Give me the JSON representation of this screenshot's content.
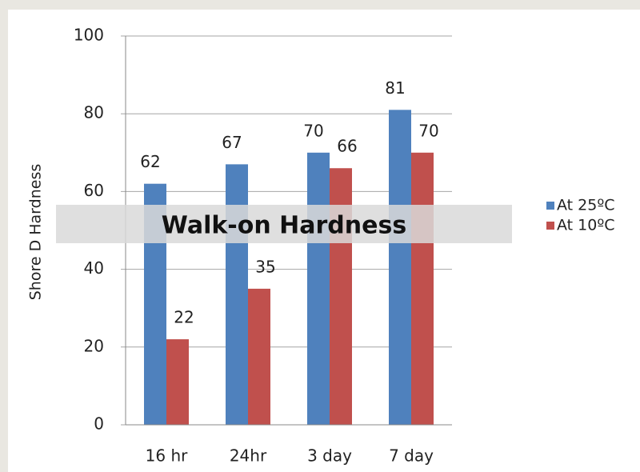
{
  "chart_data": {
    "type": "bar",
    "y_label": "Shore D Hardness",
    "annotation": "Walk-on Hardness",
    "categories": [
      "16 hr",
      "24hr",
      "3 day",
      "7 day"
    ],
    "series": [
      {
        "name": "At 25ºC",
        "color": "#4f81bd",
        "values": [
          62,
          67,
          70,
          81
        ]
      },
      {
        "name": "At 10ºC",
        "color": "#c0504d",
        "values": [
          22,
          35,
          66,
          70
        ]
      }
    ],
    "ylim": [
      0,
      100
    ],
    "yticks": [
      0,
      20,
      40,
      60,
      80,
      100
    ],
    "grid": true,
    "legend": "right"
  }
}
